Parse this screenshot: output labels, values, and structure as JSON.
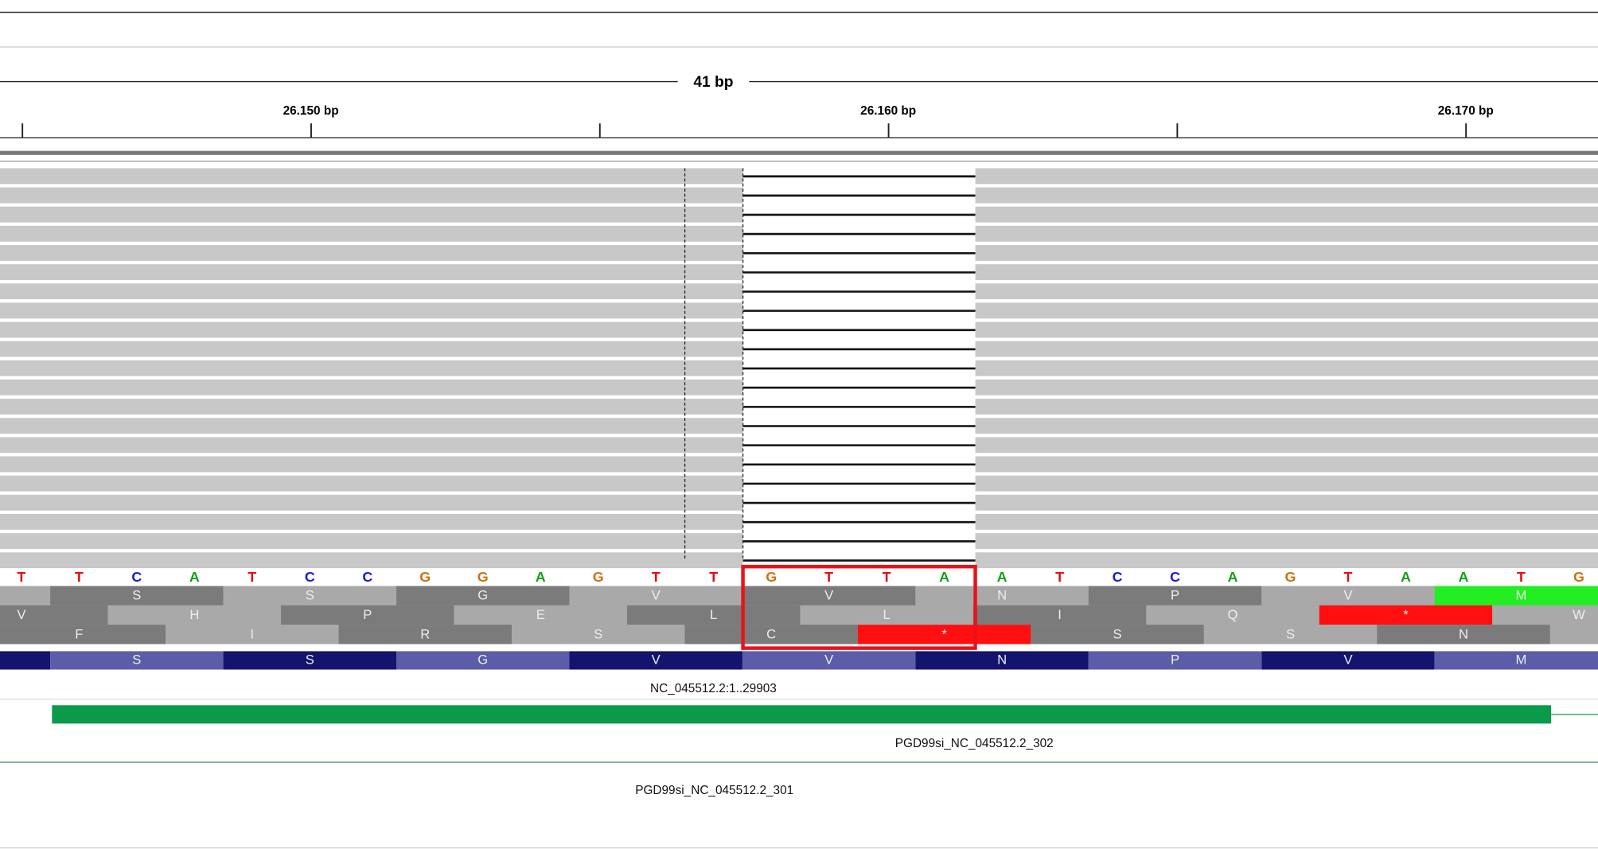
{
  "ruler": {
    "span": "41 bp",
    "tick_labels": [
      "26.150 bp",
      "26.160 bp",
      "26.170 bp"
    ]
  },
  "sequence": {
    "bases": [
      "T",
      "T",
      "C",
      "A",
      "T",
      "C",
      "C",
      "G",
      "G",
      "A",
      "G",
      "T",
      "T",
      "G",
      "T",
      "T",
      "A",
      "A",
      "T",
      "C",
      "C",
      "A",
      "G",
      "T",
      "A",
      "A",
      "T",
      "G"
    ]
  },
  "translation_frames": [
    {
      "amino_acids": [
        "S",
        "S",
        "G",
        "V",
        "V",
        "N",
        "P",
        "V",
        "M"
      ]
    },
    {
      "amino_acids": [
        "V",
        "H",
        "P",
        "E",
        "L",
        "L",
        "I",
        "Q",
        "*",
        "W"
      ]
    },
    {
      "amino_acids": [
        "F",
        "I",
        "R",
        "S",
        "C",
        "*",
        "S",
        "S",
        "N"
      ]
    }
  ],
  "gene_track": {
    "amino_acids": [
      "S",
      "S",
      "G",
      "V",
      "V",
      "N",
      "P",
      "V",
      "M"
    ],
    "name": "NC_045512.2:1..29903"
  },
  "features": [
    {
      "name": "PGD99si_NC_045512.2_302"
    },
    {
      "name": "PGD99si_NC_045512.2_301"
    }
  ]
}
